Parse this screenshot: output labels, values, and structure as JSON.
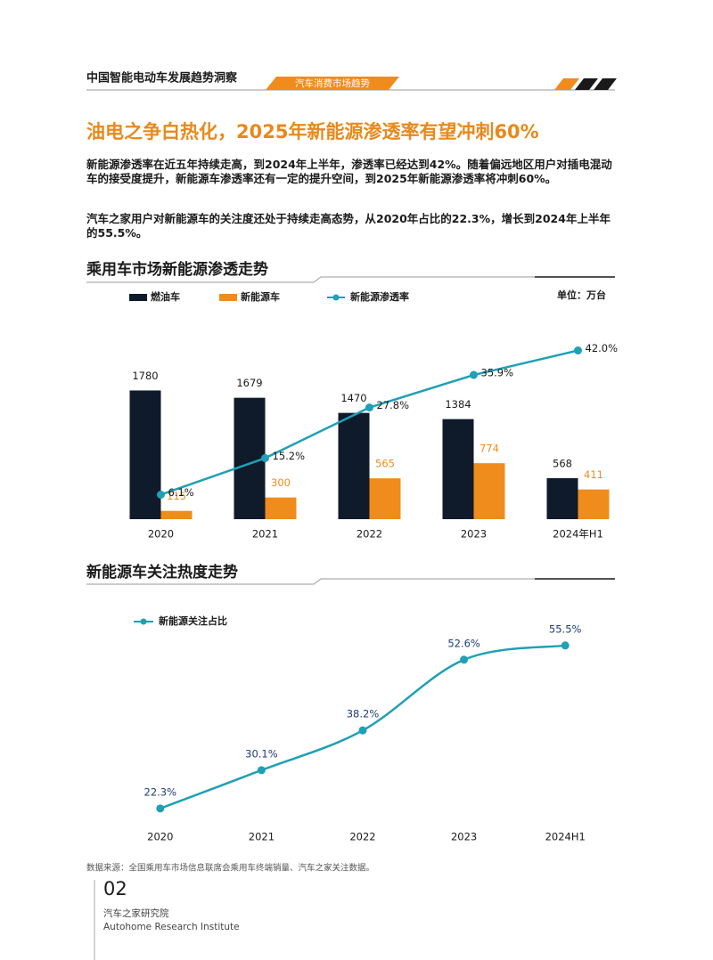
{
  "header": {
    "report_title": "中国智能电动车发展趋势洞察",
    "section_tab": "汽车消费市场趋势"
  },
  "title": "油电之争白热化，2025年新能源渗透率有望冲刺60%",
  "paragraphs": [
    "新能源渗透率在近五年持续走高，到2024年上半年，渗透率已经达到42%。随着偏远地区用户对插电混动车的接受度提升，新能源车渗透率还有一定的提升空间，到2025年新能源渗透率将冲刺60%。",
    "汽车之家用户对新能源车的关注度还处于持续走高态势，从2020年占比的22.3%，增长到2024年上半年的55.5%。"
  ],
  "chart_data": [
    {
      "type": "bar",
      "title": "乘用车市场新能源渗透走势",
      "unit": "单位：万台",
      "categories": [
        "2020",
        "2021",
        "2022",
        "2023",
        "2024年H1"
      ],
      "series": [
        {
          "name": "燃油车",
          "color": "#0f1a2b",
          "values": [
            1780,
            1679,
            1470,
            1384,
            568
          ]
        },
        {
          "name": "新能源车",
          "color": "#f08c1c",
          "values": [
            115,
            300,
            565,
            774,
            411
          ]
        },
        {
          "name": "新能源渗透率",
          "type": "line",
          "axis": "y2",
          "color": "#1fa0b5",
          "values": [
            6.1,
            15.2,
            27.8,
            35.9,
            42.0
          ],
          "value_labels": [
            "6.1%",
            "15.2%",
            "27.8%",
            "35.9%",
            "42.0%"
          ]
        }
      ],
      "ylim": [
        0,
        2500
      ],
      "y2lim": [
        0,
        45
      ]
    },
    {
      "type": "line",
      "title": "新能源车关注热度走势",
      "categories": [
        "2020",
        "2021",
        "2022",
        "2023",
        "2024H1"
      ],
      "series": [
        {
          "name": "新能源关注占比",
          "color": "#1fa0b5",
          "values": [
            22.3,
            30.1,
            38.2,
            52.6,
            55.5
          ],
          "value_labels": [
            "22.3%",
            "30.1%",
            "38.2%",
            "52.6%",
            "55.5%"
          ]
        }
      ],
      "ylim": [
        21,
        60
      ]
    }
  ],
  "source": "数据来源：全国乘用车市场信息联席会乘用车终端销量、汽车之家关注数据。",
  "footer": {
    "page": "02",
    "org_cn": "汽车之家研究院",
    "org_en": "Autohome Research Institute"
  }
}
